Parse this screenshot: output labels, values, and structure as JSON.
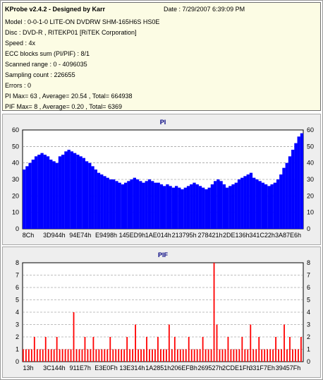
{
  "info": {
    "title": "KProbe v2.4.2 - Designed by Karr",
    "date": "Date : 7/29/2007 6:39:09 PM",
    "rows": [
      "Model : 0-0-1-0 LITE-ON DVDRW SHM-165H6S HS0E",
      "Disc : DVD-R , RITEKP01 [RiTEK Corporation]",
      "Speed : 4x",
      "ECC blocks sum (PI/PIF) : 8/1",
      "Scanned range : 0 - 4096035",
      "Sampling count : 226655",
      "Errors : 0",
      "PI Max= 63 , Average= 20.54 , Total= 664938",
      "PIF Max= 8 , Average= 0.20 , Total= 6369"
    ]
  },
  "colors": {
    "bar": "#0000ff",
    "pif_bar": "#ff0000",
    "plot_bg": "#ffffff",
    "grid": "#808080",
    "title": "#000080"
  },
  "chart_data": [
    {
      "type": "bar",
      "title": "PI",
      "ylim": [
        0,
        60
      ],
      "yticks": [
        "0",
        "10",
        "20",
        "30",
        "40",
        "50",
        "60"
      ],
      "xticks": [
        "8Ch",
        "3D944h",
        "94E74h",
        "E9498h",
        "145ED9h",
        "1AE014h",
        "213795h",
        "278421h",
        "2DE136h",
        "341C22h",
        "3A87E6h"
      ],
      "grid": "dashed horizontal",
      "series": [
        {
          "values": [
            36,
            38,
            40,
            42,
            44,
            45,
            46,
            45,
            44,
            42,
            41,
            40,
            44,
            45,
            47,
            48,
            47,
            46,
            45,
            44,
            43,
            41,
            40,
            38,
            36,
            34,
            33,
            32,
            31,
            30,
            30,
            29,
            28,
            27,
            28,
            29,
            30,
            31,
            30,
            29,
            28,
            29,
            30,
            29,
            28,
            28,
            27,
            26,
            27,
            26,
            25,
            26,
            25,
            24,
            25,
            26,
            27,
            28,
            27,
            26,
            25,
            24,
            25,
            27,
            29,
            30,
            29,
            27,
            25,
            26,
            27,
            28,
            30,
            31,
            32,
            33,
            34,
            31,
            30,
            29,
            28,
            27,
            26,
            27,
            28,
            30,
            33,
            37,
            40,
            44,
            48,
            52,
            56,
            58
          ]
        }
      ]
    },
    {
      "type": "bar",
      "title": "PIF",
      "ylim": [
        0,
        8
      ],
      "yticks": [
        "0",
        "1",
        "2",
        "3",
        "4",
        "5",
        "6",
        "7",
        "8"
      ],
      "xticks": [
        "13h",
        "3C144h",
        "911E7h",
        "E3E0Fh",
        "13E314h",
        "1A2851h",
        "206EFBh",
        "269527h",
        "2CDE1Fh",
        "331F7Eh",
        "39457Fh"
      ],
      "grid": "dashed horizontal",
      "series": [
        {
          "values": [
            1,
            1,
            1,
            1,
            2,
            1,
            1,
            1,
            2,
            1,
            1,
            1,
            2,
            1,
            1,
            1,
            1,
            1,
            4,
            1,
            1,
            1,
            2,
            1,
            1,
            2,
            1,
            1,
            1,
            1,
            1,
            2,
            1,
            1,
            1,
            1,
            1,
            2,
            1,
            1,
            3,
            1,
            1,
            1,
            2,
            1,
            1,
            1,
            2,
            1,
            1,
            1,
            3,
            1,
            2,
            1,
            1,
            1,
            1,
            2,
            1,
            1,
            1,
            1,
            2,
            1,
            1,
            1,
            8,
            3,
            1,
            1,
            1,
            2,
            1,
            1,
            1,
            1,
            2,
            1,
            1,
            3,
            1,
            1,
            2,
            1,
            1,
            1,
            1,
            1,
            2,
            1,
            1,
            3,
            1,
            2,
            1,
            1,
            1,
            2
          ]
        }
      ]
    }
  ]
}
